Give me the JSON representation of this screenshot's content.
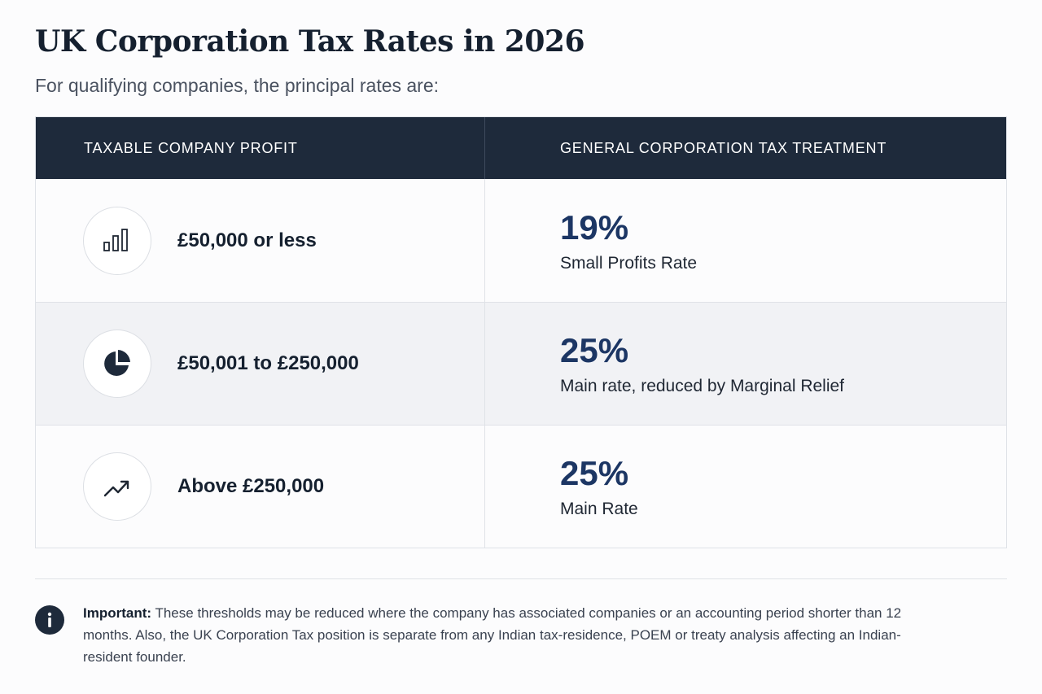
{
  "page": {
    "title": "UK Corporation Tax Rates in 2026",
    "subtitle": "For qualifying companies, the principal rates are:"
  },
  "table": {
    "headers": [
      "TAXABLE COMPANY PROFIT",
      "GENERAL CORPORATION TAX TREATMENT"
    ],
    "rows": [
      {
        "icon": "bar-chart-icon",
        "profit": "£50,000 or less",
        "rate": "19%",
        "treatment": "Small Profits Rate"
      },
      {
        "icon": "pie-chart-icon",
        "profit": "£50,001 to £250,000",
        "rate": "25%",
        "treatment": "Main rate, reduced by Marginal Relief"
      },
      {
        "icon": "trend-up-icon",
        "profit": "Above £250,000",
        "rate": "25%",
        "treatment": "Main Rate"
      }
    ]
  },
  "note": {
    "icon": "info-icon",
    "label": "Important:",
    "text": "These thresholds may be reduced where the company has associated companies or an accounting period shorter than 12 months. Also, the UK Corporation Tax position is separate from any Indian tax-residence, POEM or treaty analysis affecting an Indian-resident founder."
  },
  "colors": {
    "header_bg": "#1e2a3b",
    "rate_accent": "#1c3664",
    "alt_row_bg": "#f1f2f5"
  }
}
